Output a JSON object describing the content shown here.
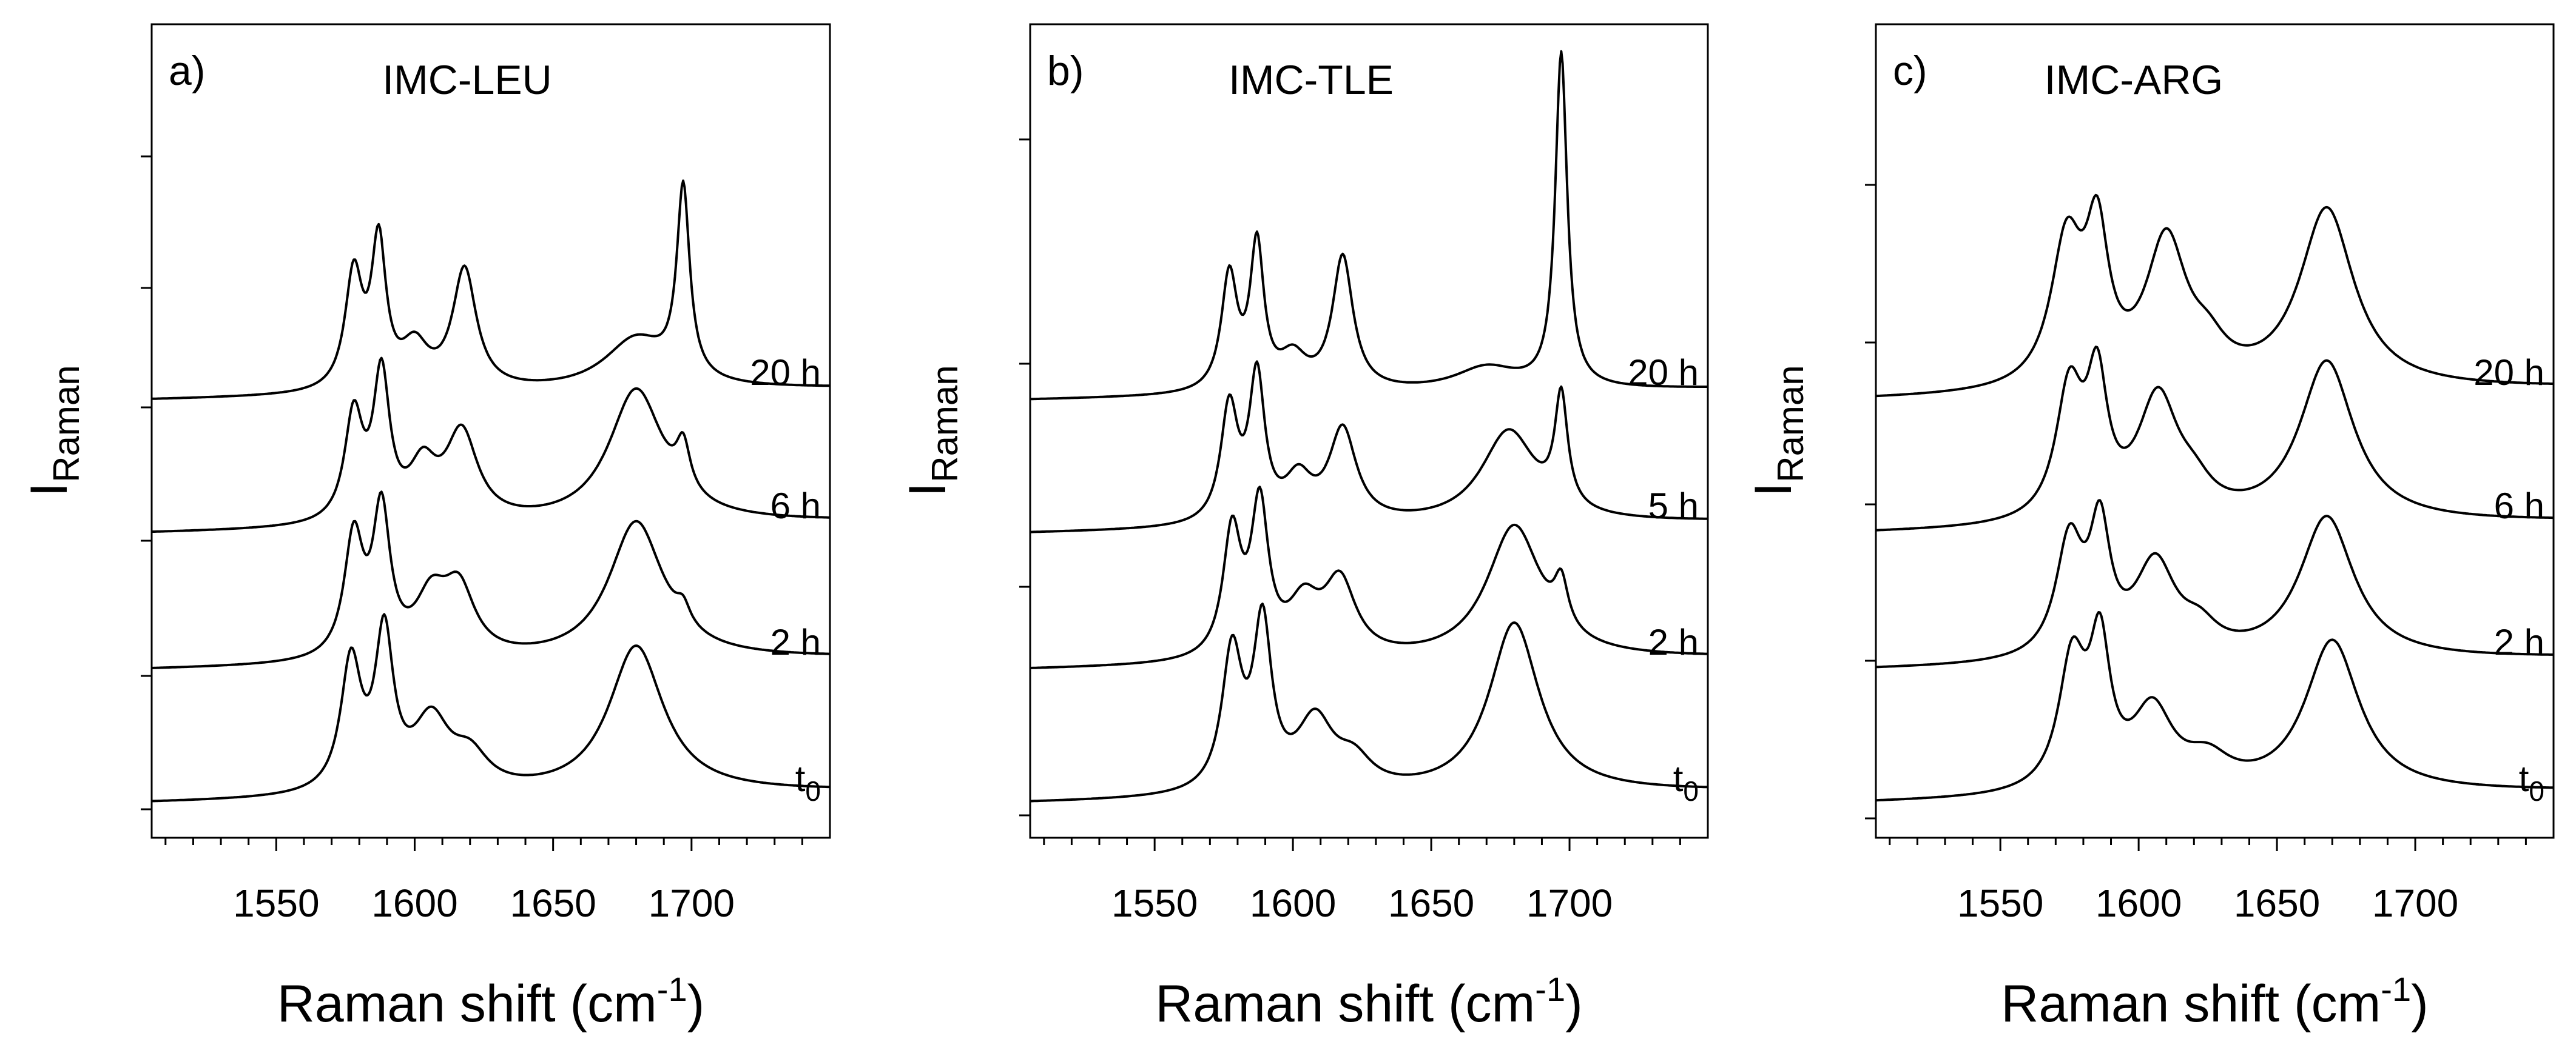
{
  "chart_data": [
    {
      "type": "line",
      "panel_label": "a)",
      "title": "IMC-LEU",
      "xlabel": "Raman shift (cm",
      "xlabel_sup": "-1",
      "xlabel_end": ")",
      "ylabel": "I",
      "ylabel_sub": "Raman",
      "xlim": [
        1505,
        1750
      ],
      "x_ticks": [
        1550,
        1600,
        1650,
        1700
      ],
      "x_tick_labels": [
        "1550",
        "1600",
        "1650",
        "1700"
      ],
      "y_tick_labels": false,
      "series": [
        {
          "name": "20 h",
          "label": "20 h",
          "offset": 3,
          "peaks": [
            [
              1578,
              0.5,
              3.8
            ],
            [
              1587,
              0.62,
              3.2
            ],
            [
              1600,
              0.18,
              6
            ],
            [
              1618,
              0.52,
              5.2
            ],
            [
              1680,
              0.22,
              14
            ],
            [
              1697,
              0.82,
              2.8
            ]
          ]
        },
        {
          "name": "6 h",
          "label": "6 h",
          "offset": 2,
          "peaks": [
            [
              1578,
              0.46,
              4
            ],
            [
              1588,
              0.62,
              3.6
            ],
            [
              1603,
              0.22,
              6
            ],
            [
              1617,
              0.38,
              7
            ],
            [
              1680,
              0.58,
              12
            ],
            [
              1697,
              0.2,
              3
            ]
          ]
        },
        {
          "name": "2 h",
          "label": "2 h",
          "offset": 1,
          "peaks": [
            [
              1578,
              0.52,
              4.2
            ],
            [
              1588,
              0.62,
              3.8
            ],
            [
              1606,
              0.24,
              7
            ],
            [
              1616,
              0.28,
              7
            ],
            [
              1680,
              0.6,
              12
            ],
            [
              1697,
              0.08,
              3
            ]
          ]
        },
        {
          "name": "t0",
          "label": "t",
          "label_sub": "0",
          "offset": 0,
          "peaks": [
            [
              1577,
              0.56,
              4.5
            ],
            [
              1589,
              0.66,
              4
            ],
            [
              1606,
              0.3,
              8
            ],
            [
              1620,
              0.14,
              8
            ],
            [
              1680,
              0.64,
              12
            ]
          ]
        }
      ]
    },
    {
      "type": "line",
      "panel_label": "b)",
      "title": "IMC-TLE",
      "xlabel": "Raman shift (cm",
      "xlabel_sup": "-1",
      "xlabel_end": ")",
      "ylabel": "I",
      "ylabel_sub": "Raman",
      "xlim": [
        1505,
        1750
      ],
      "x_ticks": [
        1550,
        1600,
        1650,
        1700
      ],
      "x_tick_labels": [
        "1550",
        "1600",
        "1650",
        "1700"
      ],
      "y_tick_labels": false,
      "series": [
        {
          "name": "20 h",
          "label": "20 h",
          "offset": 3,
          "peaks": [
            [
              1577,
              0.5,
              3.5
            ],
            [
              1587,
              0.62,
              3.0
            ],
            [
              1600,
              0.14,
              6
            ],
            [
              1618,
              0.58,
              4.5
            ],
            [
              1670,
              0.1,
              14
            ],
            [
              1697,
              1.45,
              2.6
            ]
          ]
        },
        {
          "name": "5 h",
          "label": "5 h",
          "offset": 2,
          "peaks": [
            [
              1577,
              0.5,
              3.8
            ],
            [
              1587,
              0.62,
              3.4
            ],
            [
              1602,
              0.18,
              6
            ],
            [
              1618,
              0.4,
              6
            ],
            [
              1678,
              0.4,
              12
            ],
            [
              1697,
              0.48,
              2.8
            ]
          ]
        },
        {
          "name": "2 h",
          "label": "2 h",
          "offset": 1,
          "peaks": [
            [
              1578,
              0.54,
              4
            ],
            [
              1588,
              0.64,
              3.8
            ],
            [
              1604,
              0.22,
              7
            ],
            [
              1617,
              0.32,
              7
            ],
            [
              1680,
              0.58,
              12
            ],
            [
              1697,
              0.2,
              3
            ]
          ]
        },
        {
          "name": "t0",
          "label": "t",
          "label_sub": "0",
          "offset": 0,
          "peaks": [
            [
              1578,
              0.6,
              4.5
            ],
            [
              1589,
              0.7,
              4
            ],
            [
              1608,
              0.3,
              8
            ],
            [
              1622,
              0.12,
              8
            ],
            [
              1680,
              0.74,
              11
            ]
          ]
        }
      ]
    },
    {
      "type": "line",
      "panel_label": "c)",
      "title": "IMC-ARG",
      "xlabel": "Raman shift (cm",
      "xlabel_sup": "-1",
      "xlabel_end": ")",
      "ylabel": "I",
      "ylabel_sub": "Raman",
      "xlim": [
        1505,
        1750
      ],
      "x_ticks": [
        1550,
        1600,
        1650,
        1700
      ],
      "x_tick_labels": [
        "1550",
        "1600",
        "1650",
        "1700"
      ],
      "y_tick_labels": false,
      "series": [
        {
          "name": "20 h",
          "label": "20 h",
          "offset": 3,
          "peaks": [
            [
              1574,
              0.62,
              7
            ],
            [
              1585,
              0.6,
              5
            ],
            [
              1610,
              0.62,
              9
            ],
            [
              1625,
              0.12,
              8
            ],
            [
              1668,
              0.78,
              12
            ]
          ]
        },
        {
          "name": "6 h",
          "label": "6 h",
          "offset": 2,
          "peaks": [
            [
              1575,
              0.56,
              6
            ],
            [
              1585,
              0.55,
              4.5
            ],
            [
              1607,
              0.52,
              9
            ],
            [
              1620,
              0.1,
              8
            ],
            [
              1668,
              0.7,
              12
            ]
          ]
        },
        {
          "name": "2 h",
          "label": "2 h",
          "offset": 1,
          "peaks": [
            [
              1575,
              0.5,
              6
            ],
            [
              1586,
              0.52,
              4.5
            ],
            [
              1606,
              0.4,
              9
            ],
            [
              1622,
              0.1,
              8
            ],
            [
              1668,
              0.62,
              12
            ]
          ]
        },
        {
          "name": "t0",
          "label": "t",
          "label_sub": "0",
          "offset": 0,
          "peaks": [
            [
              1576,
              0.56,
              6
            ],
            [
              1586,
              0.58,
              4.5
            ],
            [
              1605,
              0.34,
              9
            ],
            [
              1625,
              0.12,
              10
            ],
            [
              1670,
              0.66,
              12
            ]
          ]
        }
      ]
    }
  ]
}
